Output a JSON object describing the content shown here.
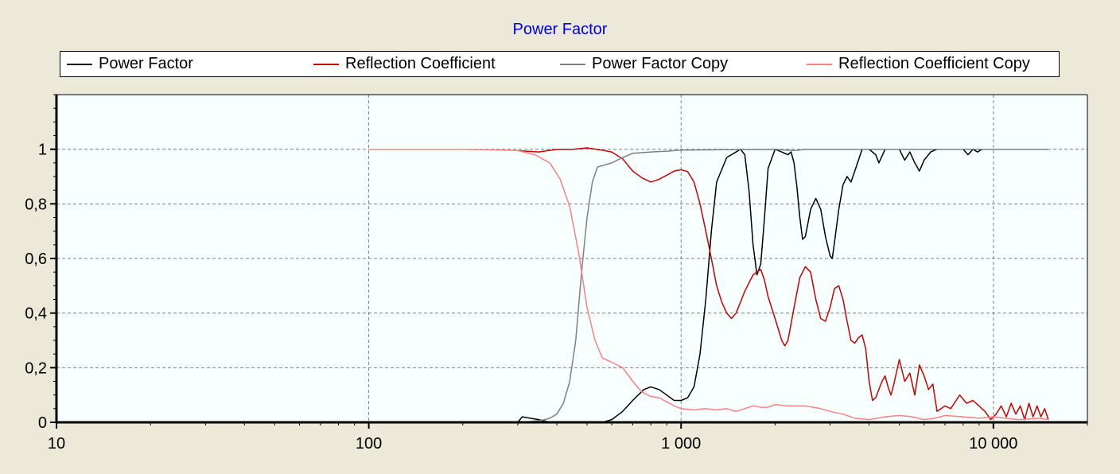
{
  "chart_data": {
    "type": "line",
    "title": "Power Factor",
    "xlabel": "",
    "ylabel": "",
    "xscale": "log",
    "xlim": [
      10,
      20000
    ],
    "ylim": [
      0,
      1.2
    ],
    "grid": true,
    "legend_position": "top",
    "x_ticks": [
      {
        "value": 10,
        "label": "10"
      },
      {
        "value": 100,
        "label": "100"
      },
      {
        "value": 1000,
        "label": "1 000"
      },
      {
        "value": 10000,
        "label": "10 000"
      }
    ],
    "y_ticks": [
      {
        "value": 0,
        "label": "0"
      },
      {
        "value": 0.2,
        "label": "0,2"
      },
      {
        "value": 0.4,
        "label": "0,4"
      },
      {
        "value": 0.6,
        "label": "0,6"
      },
      {
        "value": 0.8,
        "label": "0,8"
      },
      {
        "value": 1,
        "label": "1"
      }
    ],
    "series": [
      {
        "name": "Power Factor",
        "color": "#000000",
        "points": [
          [
            10,
            0
          ],
          [
            300,
            0
          ],
          [
            310,
            0.02
          ],
          [
            350,
            0.01
          ],
          [
            380,
            0
          ],
          [
            560,
            0
          ],
          [
            600,
            0.01
          ],
          [
            650,
            0.04
          ],
          [
            700,
            0.08
          ],
          [
            760,
            0.12
          ],
          [
            800,
            0.13
          ],
          [
            850,
            0.12
          ],
          [
            900,
            0.1
          ],
          [
            950,
            0.08
          ],
          [
            1000,
            0.08
          ],
          [
            1050,
            0.09
          ],
          [
            1100,
            0.13
          ],
          [
            1150,
            0.25
          ],
          [
            1200,
            0.45
          ],
          [
            1250,
            0.7
          ],
          [
            1300,
            0.88
          ],
          [
            1400,
            0.97
          ],
          [
            1500,
            0.99
          ],
          [
            1550,
            1.0
          ],
          [
            1600,
            0.98
          ],
          [
            1650,
            0.85
          ],
          [
            1700,
            0.65
          ],
          [
            1750,
            0.54
          ],
          [
            1800,
            0.58
          ],
          [
            1850,
            0.75
          ],
          [
            1900,
            0.93
          ],
          [
            2000,
            1.0
          ],
          [
            2100,
            0.99
          ],
          [
            2200,
            0.98
          ],
          [
            2250,
            0.99
          ],
          [
            2300,
            0.95
          ],
          [
            2350,
            0.86
          ],
          [
            2400,
            0.75
          ],
          [
            2450,
            0.67
          ],
          [
            2500,
            0.68
          ],
          [
            2600,
            0.78
          ],
          [
            2700,
            0.82
          ],
          [
            2800,
            0.78
          ],
          [
            2900,
            0.68
          ],
          [
            3000,
            0.61
          ],
          [
            3050,
            0.6
          ],
          [
            3100,
            0.66
          ],
          [
            3200,
            0.78
          ],
          [
            3300,
            0.87
          ],
          [
            3400,
            0.9
          ],
          [
            3500,
            0.88
          ],
          [
            3600,
            0.92
          ],
          [
            3800,
            1.0
          ],
          [
            4000,
            1.0
          ],
          [
            4200,
            0.98
          ],
          [
            4300,
            0.95
          ],
          [
            4500,
            1.0
          ],
          [
            4800,
            1.0
          ],
          [
            5000,
            1.0
          ],
          [
            5200,
            0.96
          ],
          [
            5400,
            0.99
          ],
          [
            5600,
            0.95
          ],
          [
            5800,
            0.92
          ],
          [
            6000,
            0.96
          ],
          [
            6300,
            0.99
          ],
          [
            6600,
            1.0
          ],
          [
            8000,
            1.0
          ],
          [
            8300,
            0.98
          ],
          [
            8600,
            1.0
          ],
          [
            8900,
            0.99
          ],
          [
            9200,
            1.0
          ],
          [
            15000,
            1.0
          ]
        ]
      },
      {
        "name": "Reflection Coefficient",
        "color": "#cc0000",
        "points": [
          [
            300,
            0.995
          ],
          [
            350,
            0.99
          ],
          [
            400,
            1.0
          ],
          [
            450,
            1.0
          ],
          [
            500,
            1.005
          ],
          [
            550,
            0.998
          ],
          [
            600,
            0.99
          ],
          [
            650,
            0.965
          ],
          [
            700,
            0.92
          ],
          [
            750,
            0.895
          ],
          [
            800,
            0.88
          ],
          [
            850,
            0.89
          ],
          [
            900,
            0.905
          ],
          [
            950,
            0.92
          ],
          [
            1000,
            0.925
          ],
          [
            1050,
            0.918
          ],
          [
            1100,
            0.88
          ],
          [
            1150,
            0.8
          ],
          [
            1200,
            0.7
          ],
          [
            1250,
            0.6
          ],
          [
            1300,
            0.5
          ],
          [
            1350,
            0.44
          ],
          [
            1400,
            0.4
          ],
          [
            1450,
            0.38
          ],
          [
            1500,
            0.4
          ],
          [
            1550,
            0.44
          ],
          [
            1600,
            0.48
          ],
          [
            1700,
            0.54
          ],
          [
            1800,
            0.56
          ],
          [
            1850,
            0.52
          ],
          [
            1900,
            0.46
          ],
          [
            2000,
            0.38
          ],
          [
            2100,
            0.3
          ],
          [
            2150,
            0.28
          ],
          [
            2200,
            0.3
          ],
          [
            2300,
            0.42
          ],
          [
            2400,
            0.53
          ],
          [
            2500,
            0.57
          ],
          [
            2600,
            0.55
          ],
          [
            2700,
            0.45
          ],
          [
            2800,
            0.38
          ],
          [
            2900,
            0.37
          ],
          [
            3000,
            0.42
          ],
          [
            3100,
            0.49
          ],
          [
            3200,
            0.5
          ],
          [
            3300,
            0.45
          ],
          [
            3400,
            0.37
          ],
          [
            3500,
            0.3
          ],
          [
            3600,
            0.29
          ],
          [
            3700,
            0.31
          ],
          [
            3800,
            0.32
          ],
          [
            3900,
            0.27
          ],
          [
            4000,
            0.15
          ],
          [
            4100,
            0.08
          ],
          [
            4200,
            0.09
          ],
          [
            4400,
            0.15
          ],
          [
            4500,
            0.17
          ],
          [
            4600,
            0.13
          ],
          [
            4700,
            0.1
          ],
          [
            4800,
            0.14
          ],
          [
            5000,
            0.23
          ],
          [
            5200,
            0.15
          ],
          [
            5400,
            0.18
          ],
          [
            5600,
            0.1
          ],
          [
            5800,
            0.21
          ],
          [
            6000,
            0.17
          ],
          [
            6200,
            0.12
          ],
          [
            6400,
            0.14
          ],
          [
            6600,
            0.04
          ],
          [
            7000,
            0.06
          ],
          [
            7300,
            0.05
          ],
          [
            7800,
            0.1
          ],
          [
            8200,
            0.07
          ],
          [
            8600,
            0.08
          ],
          [
            9000,
            0.06
          ],
          [
            9400,
            0.04
          ],
          [
            9800,
            0.01
          ],
          [
            10200,
            0.03
          ],
          [
            10600,
            0.06
          ],
          [
            11000,
            0.02
          ],
          [
            11400,
            0.07
          ],
          [
            11800,
            0.03
          ],
          [
            12200,
            0.06
          ],
          [
            12600,
            0.01
          ],
          [
            13000,
            0.07
          ],
          [
            13400,
            0.02
          ],
          [
            13800,
            0.06
          ],
          [
            14200,
            0.02
          ],
          [
            14600,
            0.05
          ],
          [
            15000,
            0.01
          ]
        ]
      },
      {
        "name": "Power Factor Copy",
        "color": "#808080",
        "points": [
          [
            300,
            0
          ],
          [
            330,
            0.003
          ],
          [
            360,
            0.008
          ],
          [
            380,
            0.015
          ],
          [
            400,
            0.03
          ],
          [
            420,
            0.07
          ],
          [
            440,
            0.15
          ],
          [
            460,
            0.3
          ],
          [
            480,
            0.55
          ],
          [
            500,
            0.75
          ],
          [
            520,
            0.88
          ],
          [
            540,
            0.935
          ],
          [
            560,
            0.94
          ],
          [
            600,
            0.95
          ],
          [
            650,
            0.97
          ],
          [
            700,
            0.985
          ],
          [
            800,
            0.99
          ],
          [
            900,
            0.993
          ],
          [
            1000,
            0.997
          ],
          [
            2000,
            1.0
          ],
          [
            2300,
            0.995
          ],
          [
            2500,
            1.0
          ],
          [
            4000,
            1.0
          ],
          [
            10000,
            1.0
          ],
          [
            15000,
            1.0
          ]
        ]
      },
      {
        "name": "Reflection Coefficient Copy",
        "color": "#ff8080",
        "points": [
          [
            100,
            1.0
          ],
          [
            200,
            1.0
          ],
          [
            250,
            0.998
          ],
          [
            300,
            0.995
          ],
          [
            340,
            0.98
          ],
          [
            380,
            0.95
          ],
          [
            410,
            0.89
          ],
          [
            440,
            0.79
          ],
          [
            470,
            0.62
          ],
          [
            500,
            0.42
          ],
          [
            530,
            0.3
          ],
          [
            560,
            0.235
          ],
          [
            600,
            0.22
          ],
          [
            650,
            0.2
          ],
          [
            700,
            0.15
          ],
          [
            750,
            0.11
          ],
          [
            800,
            0.095
          ],
          [
            850,
            0.09
          ],
          [
            900,
            0.075
          ],
          [
            950,
            0.06
          ],
          [
            1000,
            0.05
          ],
          [
            1100,
            0.045
          ],
          [
            1200,
            0.05
          ],
          [
            1300,
            0.045
          ],
          [
            1400,
            0.05
          ],
          [
            1500,
            0.04
          ],
          [
            1600,
            0.05
          ],
          [
            1700,
            0.06
          ],
          [
            1800,
            0.055
          ],
          [
            1900,
            0.055
          ],
          [
            2000,
            0.065
          ],
          [
            2200,
            0.06
          ],
          [
            2500,
            0.06
          ],
          [
            2800,
            0.05
          ],
          [
            3000,
            0.04
          ],
          [
            3300,
            0.03
          ],
          [
            3600,
            0.015
          ],
          [
            4000,
            0.01
          ],
          [
            4500,
            0.02
          ],
          [
            5000,
            0.025
          ],
          [
            5500,
            0.02
          ],
          [
            6000,
            0.01
          ],
          [
            6500,
            0.015
          ],
          [
            7000,
            0.025
          ],
          [
            8000,
            0.02
          ],
          [
            9000,
            0.015
          ],
          [
            10000,
            0.02
          ],
          [
            12000,
            0.01
          ],
          [
            14000,
            0.015
          ],
          [
            15000,
            0.01
          ]
        ]
      }
    ]
  }
}
